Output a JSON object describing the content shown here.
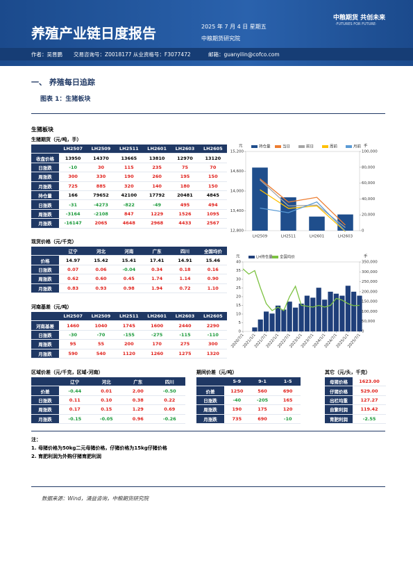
{
  "header": {
    "title": "养殖产业链日度报告",
    "date": "2025 年 7 月 4 日 星期五",
    "institute": "中粮期货研究院",
    "brand": "中粮期货  共创未来",
    "brand_en": "·FUTURES FOR FUTURE·",
    "author": "作者：吴晋鹏",
    "license": "交易咨询号：Z0018177 从业资格号：F3077472",
    "email": "邮箱：guanyilin@cofco.com"
  },
  "section": "一、    养殖每日追踪",
  "figure": "图表 1：生猪板块",
  "panel_title": "生猪板块",
  "tables": [
    {
      "title": "生猪期货（元/吨，手）",
      "columns": [
        "LH2507",
        "LH2509",
        "LH2511",
        "LH2601",
        "LH2603",
        "LH2605"
      ],
      "rows": [
        {
          "label": "收盘价格",
          "cells": [
            "13950",
            "14370",
            "13665",
            "13810",
            "12970",
            "13120"
          ]
        },
        {
          "label": "日涨跌",
          "cells": [
            "-10",
            "30",
            "115",
            "235",
            "75",
            "70"
          ]
        },
        {
          "label": "周涨跌",
          "cells": [
            "300",
            "330",
            "190",
            "260",
            "195",
            "150"
          ]
        },
        {
          "label": "月涨跌",
          "cells": [
            "725",
            "885",
            "320",
            "140",
            "180",
            "150"
          ]
        },
        {
          "label": "持仓量",
          "cells": [
            "166",
            "79652",
            "42100",
            "17792",
            "20481",
            "4845"
          ]
        },
        {
          "label": "日涨跌",
          "cells": [
            "-31",
            "-4273",
            "-822",
            "-49",
            "495",
            "494"
          ]
        },
        {
          "label": "周涨跌",
          "cells": [
            "-3164",
            "-2108",
            "847",
            "1229",
            "1526",
            "1095"
          ]
        },
        {
          "label": "月涨跌",
          "cells": [
            "-16147",
            "2065",
            "4648",
            "2968",
            "4433",
            "2567"
          ]
        }
      ]
    },
    {
      "title": "现货价格（元/千克）",
      "columns": [
        "辽宁",
        "河北",
        "河南",
        "广东",
        "四川",
        "全国均价"
      ],
      "rows": [
        {
          "label": "价格",
          "cells": [
            "14.97",
            "15.42",
            "15.41",
            "17.41",
            "14.91",
            "15.46"
          ]
        },
        {
          "label": "日涨跌",
          "cells": [
            "0.07",
            "0.06",
            "-0.04",
            "0.34",
            "0.18",
            "0.16"
          ]
        },
        {
          "label": "周涨跌",
          "cells": [
            "0.62",
            "0.60",
            "0.45",
            "1.74",
            "1.14",
            "0.90"
          ]
        },
        {
          "label": "月涨跌",
          "cells": [
            "0.83",
            "0.93",
            "0.98",
            "1.94",
            "0.72",
            "1.10"
          ]
        }
      ]
    },
    {
      "title": "河南基差（元/吨）",
      "columns": [
        "LH2507",
        "LH2509",
        "LH2511",
        "LH2601",
        "LH2603",
        "LH2605"
      ],
      "rows": [
        {
          "label": "河南基差",
          "cells": [
            "1460",
            "1040",
            "1745",
            "1600",
            "2440",
            "2290"
          ]
        },
        {
          "label": "日涨跌",
          "cells": [
            "-30",
            "-70",
            "-155",
            "-275",
            "-115",
            "-110"
          ]
        },
        {
          "label": "周涨跌",
          "cells": [
            "95",
            "55",
            "200",
            "170",
            "275",
            "300"
          ]
        },
        {
          "label": "月涨跌",
          "cells": [
            "590",
            "540",
            "1120",
            "1260",
            "1275",
            "1320"
          ]
        }
      ]
    },
    {
      "title": "区域价差（元/千克，区域-河南）",
      "columns": [
        "辽宁",
        "河北",
        "广东",
        "四川"
      ],
      "rows": [
        {
          "label": "价差",
          "cells": [
            "-0.44",
            "0.01",
            "2.00",
            "-0.50"
          ]
        },
        {
          "label": "日涨跌",
          "cells": [
            "0.11",
            "0.10",
            "0.38",
            "0.22"
          ]
        },
        {
          "label": "周涨跌",
          "cells": [
            "0.17",
            "0.15",
            "1.29",
            "0.69"
          ]
        },
        {
          "label": "月涨跌",
          "cells": [
            "-0.15",
            "-0.05",
            "0.96",
            "-0.26"
          ]
        }
      ]
    },
    {
      "title": "期间价差（元/吨）",
      "columns": [
        "5-9",
        "9-1",
        "1-5"
      ],
      "rows": [
        {
          "label": "价差",
          "cells": [
            "1250",
            "560",
            "690"
          ]
        },
        {
          "label": "日涨跌",
          "cells": [
            "-40",
            "-205",
            "165"
          ]
        },
        {
          "label": "周涨跌",
          "cells": [
            "190",
            "175",
            "120"
          ]
        },
        {
          "label": "月涨跌",
          "cells": [
            "735",
            "690",
            "-10"
          ]
        }
      ]
    },
    {
      "title": "其它（元/头，千克）",
      "rows": [
        {
          "label": "母猪价格",
          "cells": [
            "1623.00"
          ]
        },
        {
          "label": "仔猪价格",
          "cells": [
            "529.00"
          ]
        },
        {
          "label": "出栏均重",
          "cells": [
            "127.27"
          ]
        },
        {
          "label": "自繁利润",
          "cells": [
            "119.42"
          ]
        },
        {
          "label": "育肥利润",
          "cells": [
            "-2.55"
          ]
        }
      ]
    }
  ],
  "chart_data": [
    {
      "type": "bar",
      "y_label": "元",
      "y2_label": "手",
      "categories": [
        "LH2509",
        "LH2511",
        "LH2601",
        "LH2603"
      ],
      "ylim": [
        12800,
        15200
      ],
      "yticks": [
        {
          "value": 12800,
          "label": "12,800"
        },
        {
          "value": 13400,
          "label": "13,400"
        },
        {
          "value": 14000,
          "label": "14,000"
        },
        {
          "value": 14600,
          "label": "14,600"
        },
        {
          "value": 15200,
          "label": "15,200"
        }
      ],
      "y2lim": [
        0,
        100000
      ],
      "y2ticks": [
        0,
        {
          "value": 20000,
          "label": "20,000"
        },
        {
          "value": 40000,
          "label": "40,000"
        },
        {
          "value": 60000,
          "label": "60,000"
        },
        {
          "value": 80000,
          "label": "80,000"
        },
        {
          "value": 100000,
          "label": "100,000"
        }
      ],
      "series": [
        {
          "name": "持仓量",
          "type": "bar",
          "axis": "y2",
          "color": "#1f4e8c",
          "values": [
            79652,
            42100,
            17792,
            20481
          ]
        },
        {
          "name": "当日",
          "type": "line",
          "color": "#ed7d31",
          "values": [
            14370,
            13665,
            13810,
            12970
          ]
        },
        {
          "name": "前日",
          "type": "line",
          "color": "#a5a5a5",
          "values": [
            14340,
            13550,
            13575,
            12895
          ]
        },
        {
          "name": "周前",
          "type": "line",
          "color": "#ffc000",
          "values": [
            14040,
            13475,
            13550,
            12775
          ]
        },
        {
          "name": "月前",
          "type": "line",
          "color": "#5b9bd5",
          "values": [
            13485,
            13345,
            13670,
            12790
          ]
        }
      ]
    },
    {
      "type": "bar",
      "y_label": "元",
      "y2_label": "手",
      "x": [
        "2020/7/1",
        "2020/10/1",
        "2021/1/1",
        "2021/4/1",
        "2021/7/1",
        "2021/10/1",
        "2022/1/1",
        "2022/4/1",
        "2022/7/1",
        "2022/10/1",
        "2023/1/1",
        "2023/4/1",
        "2023/7/1",
        "2023/10/1",
        "2024/1/1",
        "2024/4/1",
        "2024/7/1",
        "2024/10/1",
        "2025/1/1",
        "2025/4/1",
        "2025/7/1"
      ],
      "xlim": [
        "2020/7/1",
        "2025/7/1"
      ],
      "xticks": [
        "2020/7/1",
        "2021/1/1",
        "2021/7/1",
        "2022/1/1",
        "2022/7/1",
        "2023/1/1",
        "2023/7/1",
        "2024/1/1",
        "2024/7/1",
        "2025/1/1",
        "2025/7/1"
      ],
      "ylim": [
        0,
        40
      ],
      "yticks": [
        0,
        5,
        10,
        15,
        20,
        25,
        30,
        35,
        40
      ],
      "y2lim": [
        0,
        350000
      ],
      "y2ticks": [
        0,
        {
          "value": 50000,
          "label": "50,000"
        },
        {
          "value": 100000,
          "label": "100,000"
        },
        {
          "value": 150000,
          "label": "150,000"
        },
        {
          "value": 200000,
          "label": "200,000"
        },
        {
          "value": 250000,
          "label": "250,000"
        },
        {
          "value": 300000,
          "label": "300,000"
        },
        {
          "value": 350000,
          "label": "350,000"
        }
      ],
      "series": [
        {
          "name": "LH持仓量",
          "type": "bar",
          "axis": "y2",
          "color": "#1f3f7a",
          "values": [
            null,
            null,
            20000,
            60000,
            100000,
            90000,
            130000,
            110000,
            150000,
            120000,
            140000,
            180000,
            170000,
            220000,
            160000,
            200000,
            190000,
            180000,
            230000,
            200000,
            180000
          ]
        },
        {
          "name": "全国均价",
          "type": "line",
          "color": "#7dc242",
          "values": [
            36,
            33,
            35,
            25,
            16,
            12,
            14,
            12,
            20,
            26,
            15,
            14.5,
            14,
            15,
            14,
            15,
            19,
            18,
            16,
            14.8,
            15
          ]
        }
      ]
    }
  ],
  "notes": {
    "title": "注：",
    "items": [
      "1. 母猪价格为50kg二元母猪价格，仔猪价格为15kg仔猪价格",
      "2. 育肥利润为外购仔猪育肥利润"
    ]
  },
  "source": "数据来源：Wind，涌益咨询，中粮期货研究院"
}
